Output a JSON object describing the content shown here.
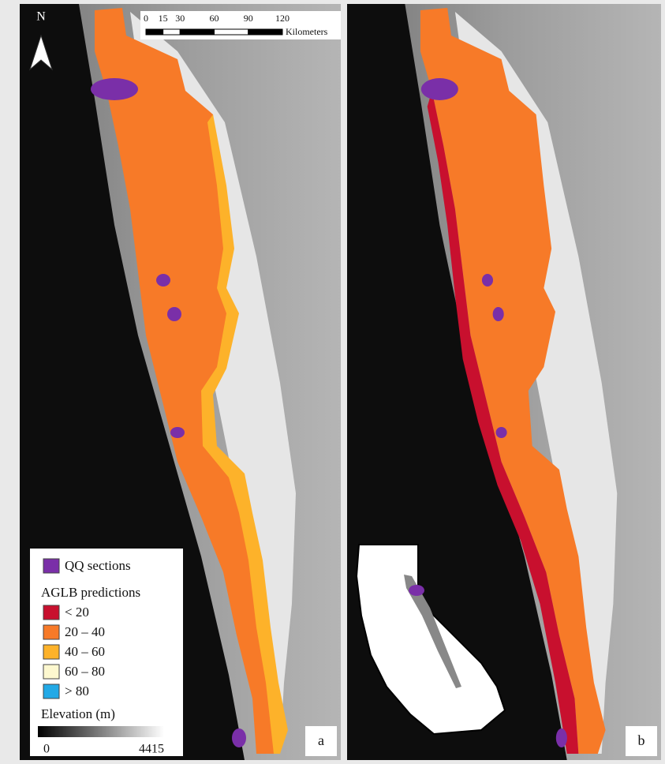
{
  "north_arrow": "N",
  "scale_bar": {
    "ticks": [
      0,
      15,
      30,
      60,
      90,
      120
    ],
    "unit": "Kilometers"
  },
  "legend": {
    "qq": {
      "label": "QQ sections",
      "color": "#7a2fa8"
    },
    "aglb": {
      "title": "AGLB predictions",
      "classes": [
        {
          "label": "< 20",
          "color": "#c8102e"
        },
        {
          "label": "20 – 40",
          "color": "#f77a28"
        },
        {
          "label": "40 – 60",
          "color": "#fdb22a"
        },
        {
          "label": "60 – 80",
          "color": "#fdf8cf"
        },
        {
          "label": "> 80",
          "color": "#22a9e6"
        }
      ]
    },
    "elevation": {
      "title": "Elevation (m)",
      "range": [
        0,
        4415
      ]
    }
  },
  "panels": [
    {
      "label": "a"
    },
    {
      "label": "b"
    }
  ]
}
